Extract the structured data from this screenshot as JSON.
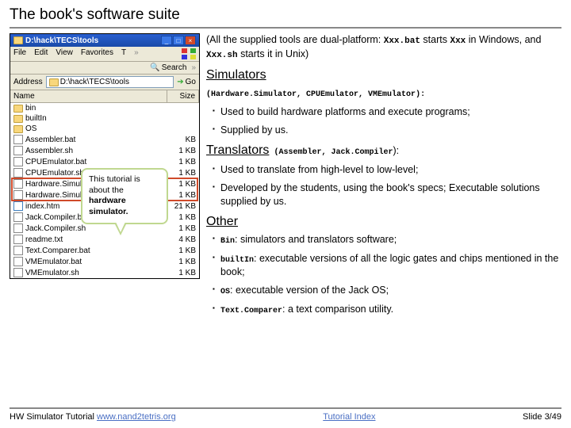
{
  "title": "The book's software suite",
  "explorer": {
    "titlebar": "D:\\hack\\TECS\\tools",
    "menu": [
      "File",
      "Edit",
      "View",
      "Favorites",
      "T"
    ],
    "menu_more": "»",
    "search_label": "Search",
    "address_label": "Address",
    "address_value": "D:\\hack\\TECS\\tools",
    "go_label": "Go",
    "col_name": "Name",
    "col_size": "Size",
    "files": [
      {
        "name": "bin",
        "size": "",
        "type": "folder"
      },
      {
        "name": "builtIn",
        "size": "",
        "type": "folder"
      },
      {
        "name": "OS",
        "size": "",
        "type": "folder"
      },
      {
        "name": "Assembler.bat",
        "size": "KB",
        "type": "bat"
      },
      {
        "name": "Assembler.sh",
        "size": "1 KB",
        "type": "sh"
      },
      {
        "name": "CPUEmulator.bat",
        "size": "1 KB",
        "type": "bat"
      },
      {
        "name": "CPUEmulator.sh",
        "size": "1 KB",
        "type": "sh"
      },
      {
        "name": "Hardware.Simulator.bat",
        "size": "1 KB",
        "type": "bat"
      },
      {
        "name": "Hardware.Simulator.sh",
        "size": "1 KB",
        "type": "sh"
      },
      {
        "name": "index.htm",
        "size": "21 KB",
        "type": "htm"
      },
      {
        "name": "Jack.Compiler.bat",
        "size": "1 KB",
        "type": "bat"
      },
      {
        "name": "Jack.Compiler.sh",
        "size": "1 KB",
        "type": "sh"
      },
      {
        "name": "readme.txt",
        "size": "4 KB",
        "type": "txt"
      },
      {
        "name": "Text.Comparer.bat",
        "size": "1 KB",
        "type": "bat"
      },
      {
        "name": "VMEmulator.bat",
        "size": "1 KB",
        "type": "bat"
      },
      {
        "name": "VMEmulator.sh",
        "size": "1 KB",
        "type": "sh"
      }
    ],
    "highlight_start": 7,
    "highlight_end": 8
  },
  "callout": {
    "l1": "This tutorial is",
    "l2": "about the",
    "l3": "hardware",
    "l4": "simulator.",
    "bold_from": 2
  },
  "content": {
    "intro_pre": "(All the supplied tools are dual-platform: ",
    "intro_m1": "Xxx.bat",
    "intro_mid1": " starts ",
    "intro_m2": "Xxx",
    "intro_mid2": " in Windows, and ",
    "intro_m3": "Xxx.sh",
    "intro_post": " starts it in Unix)",
    "h1": "Simulators",
    "h1_sub_pre": "(",
    "h1_sub_m": "Hardware.Simulator, CPUEmulator, VMEmulator",
    "h1_sub_post": "):",
    "b1": "Used to build hardware platforms and execute programs;",
    "b2": "Supplied by us.",
    "h2": "Translators",
    "h2_sub_pre": " (",
    "h2_sub_m": "Assembler, Jack.Compiler",
    "h2_sub_post": "):",
    "b3": "Used to translate from high-level to low-level;",
    "b4": "Developed by the students, using the book's specs; Executable solutions supplied by us.",
    "h3": "Other",
    "o1_m": "Bin",
    "o1_t": ": simulators and translators software;",
    "o2_m": "builtIn",
    "o2_t": ": executable versions of all the logic gates and chips mentioned in the book;",
    "o3_m": "OS",
    "o3_t": ": executable version of the Jack OS;",
    "o4_m": "Text.Comparer",
    "o4_t": ": a text comparison utility."
  },
  "footer": {
    "left_text": "HW Simulator Tutorial ",
    "left_link": "www.nand2tetris.org",
    "center_link": "Tutorial Index",
    "right": "Slide 3/49"
  },
  "colors": {
    "highlight": "#d04a2a",
    "callout_border": "#c0d890",
    "link": "#4a6fc4",
    "rule": "#888888",
    "titlebar_top": "#2a60d0",
    "titlebar_bot": "#1a4aa8",
    "win_bg": "#ece9d8"
  }
}
